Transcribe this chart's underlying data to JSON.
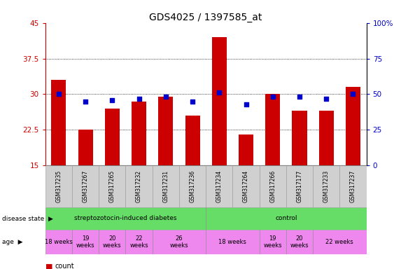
{
  "title": "GDS4025 / 1397585_at",
  "samples": [
    "GSM317235",
    "GSM317267",
    "GSM317265",
    "GSM317232",
    "GSM317231",
    "GSM317236",
    "GSM317234",
    "GSM317264",
    "GSM317266",
    "GSM317177",
    "GSM317233",
    "GSM317237"
  ],
  "counts": [
    33.0,
    22.5,
    27.0,
    28.5,
    29.5,
    25.5,
    42.0,
    21.5,
    30.0,
    26.5,
    26.5,
    31.5
  ],
  "percentiles_pct": [
    50,
    45,
    46,
    47,
    48,
    45,
    51,
    43,
    48,
    48,
    47,
    50
  ],
  "ylim_left": [
    15,
    45
  ],
  "ylim_right": [
    0,
    100
  ],
  "yticks_left": [
    15,
    22.5,
    30,
    37.5,
    45
  ],
  "yticks_right": [
    0,
    25,
    50,
    75,
    100
  ],
  "ytick_labels_left": [
    "15",
    "22.5",
    "30",
    "37.5",
    "45"
  ],
  "ytick_labels_right": [
    "0",
    "25",
    "50",
    "75",
    "100%"
  ],
  "left_axis_color": "#cc0000",
  "right_axis_color": "#0000cc",
  "bar_color": "#cc0000",
  "dot_color": "#0000cc",
  "sample_box_color": "#d0d0d0",
  "disease_box_color": "#66dd66",
  "age_box_color": "#ee88ee",
  "legend_count_color": "#cc0000",
  "legend_dot_color": "#0000ff",
  "figsize": [
    5.63,
    3.84
  ],
  "dpi": 100,
  "age_defs": [
    {
      "s": 0,
      "e": 1,
      "label": "18 weeks",
      "two_line": false
    },
    {
      "s": 1,
      "e": 2,
      "label": "19\nweeks",
      "two_line": true
    },
    {
      "s": 2,
      "e": 3,
      "label": "20\nweeks",
      "two_line": true
    },
    {
      "s": 3,
      "e": 4,
      "label": "22\nweeks",
      "two_line": true
    },
    {
      "s": 4,
      "e": 6,
      "label": "26\nweeks",
      "two_line": true
    },
    {
      "s": 6,
      "e": 8,
      "label": "18 weeks",
      "two_line": false
    },
    {
      "s": 8,
      "e": 9,
      "label": "19\nweeks",
      "two_line": true
    },
    {
      "s": 9,
      "e": 10,
      "label": "20\nweeks",
      "two_line": true
    },
    {
      "s": 10,
      "e": 12,
      "label": "22 weeks",
      "two_line": false
    }
  ]
}
